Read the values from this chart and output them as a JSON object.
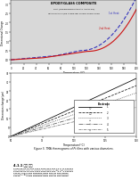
{
  "top_chart": {
    "title": "EPOXY/GLASS COMPOSITE",
    "subtitle1": "TMA (THERMOMECHANICAL ANALYSIS)",
    "subtitle2": "HEATING RATE: 5°C/MIN  SAMPLE SIZE: 6.04MM X 5.5MM X 3.8MM",
    "xlabel": "Temperature (°C)",
    "ylabel": "Dimensional Change",
    "xlim": [
      0,
      200
    ],
    "ylim": [
      -0.2,
      3.2
    ],
    "curve1_label": "1st Heat",
    "curve1_color": "#3333bb",
    "curve1_style": "--",
    "curve2_label": "2nd Heat",
    "curve2_color": "#cc1111",
    "curve2_style": "-",
    "bg_color": "#d8d8d8",
    "xticks": [
      0,
      20,
      40,
      60,
      80,
      100,
      120,
      140,
      160,
      180,
      200
    ],
    "ytick_count": 7
  },
  "bottom_chart": {
    "xlabel": "Temperature(°C)",
    "ylabel": "Dimension change(μm)",
    "xlim": [
      50,
      150
    ],
    "ylim": [
      0,
      35
    ],
    "num_lines": 5,
    "slopes": [
      0.32,
      0.28,
      0.24,
      0.2,
      0.16
    ],
    "intercepts": [
      -16,
      -14,
      -12,
      -10,
      -8
    ],
    "xticks": [
      50,
      75,
      100,
      125,
      150
    ],
    "yticks": [
      0,
      5,
      10,
      15,
      20,
      25,
      30,
      35
    ]
  },
  "caption": "Figure 5. TMA thermograms of Pt films with various diameters.",
  "korean_text1": "4.1.1 분석 결과",
  "korean_text2": "이 실험은 유리 섬유 강화 에폭시 복합재의 열기계적 분석을 통하여 1차 및 2차 가열과정에서 열팡시계수(CTE)의 변화와 유리전이온도를 측정하여 소재의 열적 거동을 규명하였다.",
  "page_bg": "#ffffff"
}
